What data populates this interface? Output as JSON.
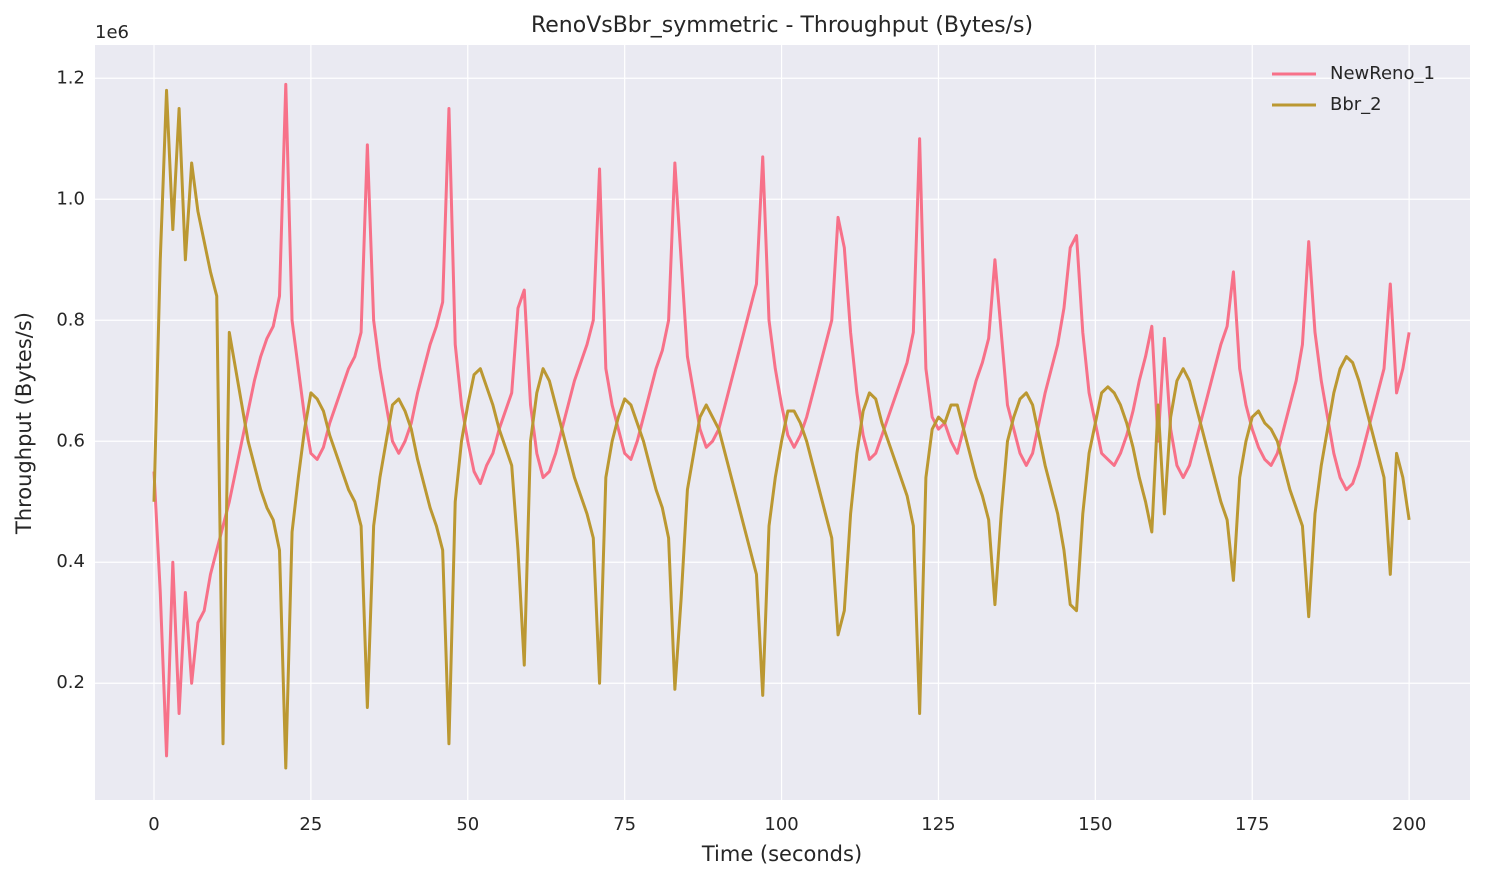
{
  "chart_data": {
    "type": "line",
    "title": "RenoVsBbr_symmetric - Throughput (Bytes/s)",
    "x_label": "Time (seconds)",
    "y_label": "Throughput (Bytes/s)",
    "y_offset_label": "1e6",
    "xlim": [
      -9.4,
      209.7
    ],
    "ylim": [
      0.007,
      1.255
    ],
    "xticks": [
      0,
      25,
      50,
      75,
      100,
      125,
      150,
      175,
      200
    ],
    "yticks": [
      0.2,
      0.4,
      0.6,
      0.8,
      {
        "value": 1,
        "label": "1.0"
      },
      1.2
    ],
    "grid": true,
    "legend": "upper right",
    "x": [
      0,
      1,
      2,
      3,
      4,
      5,
      6,
      7,
      8,
      9,
      10,
      11,
      12,
      13,
      14,
      15,
      16,
      17,
      18,
      19,
      20,
      21,
      22,
      23,
      24,
      25,
      26,
      27,
      28,
      29,
      30,
      31,
      32,
      33,
      34,
      35,
      36,
      37,
      38,
      39,
      40,
      41,
      42,
      43,
      44,
      45,
      46,
      47,
      48,
      49,
      50,
      51,
      52,
      53,
      54,
      55,
      56,
      57,
      58,
      59,
      60,
      61,
      62,
      63,
      64,
      65,
      66,
      67,
      68,
      69,
      70,
      71,
      72,
      73,
      74,
      75,
      76,
      77,
      78,
      79,
      80,
      81,
      82,
      83,
      84,
      85,
      86,
      87,
      88,
      89,
      90,
      91,
      92,
      93,
      94,
      95,
      96,
      97,
      98,
      99,
      100,
      101,
      102,
      103,
      104,
      105,
      106,
      107,
      108,
      109,
      110,
      111,
      112,
      113,
      114,
      115,
      116,
      117,
      118,
      119,
      120,
      121,
      122,
      123,
      124,
      125,
      126,
      127,
      128,
      129,
      130,
      131,
      132,
      133,
      134,
      135,
      136,
      137,
      138,
      139,
      140,
      141,
      142,
      143,
      144,
      145,
      146,
      147,
      148,
      149,
      150,
      151,
      152,
      153,
      154,
      155,
      156,
      157,
      158,
      159,
      160,
      161,
      162,
      163,
      164,
      165,
      166,
      167,
      168,
      169,
      170,
      171,
      172,
      173,
      174,
      175,
      176,
      177,
      178,
      179,
      180,
      181,
      182,
      183,
      184,
      185,
      186,
      187,
      188,
      189,
      190,
      191,
      192,
      193,
      194,
      195,
      196,
      197,
      198,
      199,
      200
    ],
    "series": [
      {
        "name": "NewReno_1",
        "color": "#f77189",
        "values": [
          0.55,
          0.35,
          0.08,
          0.4,
          0.15,
          0.35,
          0.2,
          0.3,
          0.32,
          0.38,
          0.42,
          0.46,
          0.5,
          0.55,
          0.6,
          0.65,
          0.7,
          0.74,
          0.77,
          0.79,
          0.84,
          1.19,
          0.8,
          0.72,
          0.64,
          0.58,
          0.57,
          0.59,
          0.63,
          0.66,
          0.69,
          0.72,
          0.74,
          0.78,
          1.09,
          0.8,
          0.72,
          0.66,
          0.6,
          0.58,
          0.6,
          0.63,
          0.68,
          0.72,
          0.76,
          0.79,
          0.83,
          1.15,
          0.76,
          0.66,
          0.6,
          0.55,
          0.53,
          0.56,
          0.58,
          0.62,
          0.65,
          0.68,
          0.82,
          0.85,
          0.66,
          0.58,
          0.54,
          0.55,
          0.58,
          0.62,
          0.66,
          0.7,
          0.73,
          0.76,
          0.8,
          1.05,
          0.72,
          0.66,
          0.62,
          0.58,
          0.57,
          0.6,
          0.64,
          0.68,
          0.72,
          0.75,
          0.8,
          1.06,
          0.9,
          0.74,
          0.68,
          0.62,
          0.59,
          0.6,
          0.62,
          0.66,
          0.7,
          0.74,
          0.78,
          0.82,
          0.86,
          1.07,
          0.8,
          0.72,
          0.66,
          0.61,
          0.59,
          0.61,
          0.64,
          0.68,
          0.72,
          0.76,
          0.8,
          0.97,
          0.92,
          0.78,
          0.68,
          0.61,
          0.57,
          0.58,
          0.61,
          0.64,
          0.67,
          0.7,
          0.73,
          0.78,
          1.1,
          0.72,
          0.64,
          0.62,
          0.63,
          0.6,
          0.58,
          0.62,
          0.66,
          0.7,
          0.73,
          0.77,
          0.9,
          0.78,
          0.66,
          0.62,
          0.58,
          0.56,
          0.58,
          0.63,
          0.68,
          0.72,
          0.76,
          0.82,
          0.92,
          0.94,
          0.78,
          0.68,
          0.63,
          0.58,
          0.57,
          0.56,
          0.58,
          0.61,
          0.65,
          0.7,
          0.74,
          0.79,
          0.6,
          0.77,
          0.62,
          0.56,
          0.54,
          0.56,
          0.6,
          0.64,
          0.68,
          0.72,
          0.76,
          0.79,
          0.88,
          0.72,
          0.66,
          0.62,
          0.59,
          0.57,
          0.56,
          0.58,
          0.62,
          0.66,
          0.7,
          0.76,
          0.93,
          0.78,
          0.7,
          0.64,
          0.58,
          0.54,
          0.52,
          0.53,
          0.56,
          0.6,
          0.64,
          0.68,
          0.72,
          0.86,
          0.68,
          0.72,
          0.78
        ]
      },
      {
        "name": "Bbr_2",
        "color": "#bb9832",
        "values": [
          0.5,
          0.9,
          1.18,
          0.95,
          1.15,
          0.9,
          1.06,
          0.98,
          0.93,
          0.88,
          0.84,
          0.1,
          0.78,
          0.72,
          0.66,
          0.6,
          0.56,
          0.52,
          0.49,
          0.47,
          0.42,
          0.06,
          0.45,
          0.54,
          0.62,
          0.68,
          0.67,
          0.65,
          0.61,
          0.58,
          0.55,
          0.52,
          0.5,
          0.46,
          0.16,
          0.46,
          0.54,
          0.6,
          0.66,
          0.67,
          0.65,
          0.62,
          0.57,
          0.53,
          0.49,
          0.46,
          0.42,
          0.1,
          0.5,
          0.6,
          0.66,
          0.71,
          0.72,
          0.69,
          0.66,
          0.62,
          0.59,
          0.56,
          0.42,
          0.23,
          0.6,
          0.68,
          0.72,
          0.7,
          0.66,
          0.62,
          0.58,
          0.54,
          0.51,
          0.48,
          0.44,
          0.2,
          0.54,
          0.6,
          0.64,
          0.67,
          0.66,
          0.63,
          0.6,
          0.56,
          0.52,
          0.49,
          0.44,
          0.19,
          0.34,
          0.52,
          0.58,
          0.64,
          0.66,
          0.64,
          0.62,
          0.58,
          0.54,
          0.5,
          0.46,
          0.42,
          0.38,
          0.18,
          0.46,
          0.54,
          0.6,
          0.65,
          0.65,
          0.63,
          0.6,
          0.56,
          0.52,
          0.48,
          0.44,
          0.28,
          0.32,
          0.48,
          0.58,
          0.65,
          0.68,
          0.67,
          0.63,
          0.6,
          0.57,
          0.54,
          0.51,
          0.46,
          0.15,
          0.54,
          0.62,
          0.64,
          0.63,
          0.66,
          0.66,
          0.62,
          0.58,
          0.54,
          0.51,
          0.47,
          0.33,
          0.48,
          0.6,
          0.64,
          0.67,
          0.68,
          0.66,
          0.61,
          0.56,
          0.52,
          0.48,
          0.42,
          0.33,
          0.32,
          0.48,
          0.58,
          0.63,
          0.68,
          0.69,
          0.68,
          0.66,
          0.63,
          0.59,
          0.54,
          0.5,
          0.45,
          0.66,
          0.48,
          0.64,
          0.7,
          0.72,
          0.7,
          0.66,
          0.62,
          0.58,
          0.54,
          0.5,
          0.47,
          0.37,
          0.54,
          0.6,
          0.64,
          0.65,
          0.63,
          0.62,
          0.6,
          0.56,
          0.52,
          0.49,
          0.46,
          0.31,
          0.48,
          0.56,
          0.62,
          0.68,
          0.72,
          0.74,
          0.73,
          0.7,
          0.66,
          0.62,
          0.58,
          0.54,
          0.38,
          0.58,
          0.54,
          0.47
        ]
      }
    ]
  }
}
